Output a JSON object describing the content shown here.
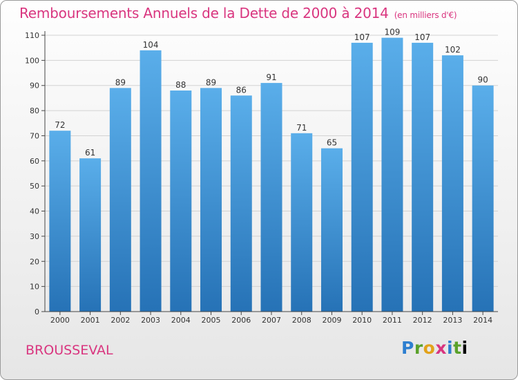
{
  "chart_data": {
    "type": "bar",
    "title": "Remboursements Annuels de la Dette de 2000 à 2014",
    "unit_label": "(en milliers d'€)",
    "categories": [
      "2000",
      "2001",
      "2002",
      "2003",
      "2004",
      "2005",
      "2006",
      "2007",
      "2008",
      "2009",
      "2010",
      "2011",
      "2012",
      "2013",
      "2014"
    ],
    "values": [
      72,
      61,
      89,
      104,
      88,
      89,
      86,
      91,
      71,
      65,
      107,
      109,
      107,
      102,
      90
    ],
    "yticks": [
      0,
      10,
      20,
      30,
      40,
      50,
      60,
      70,
      80,
      90,
      100,
      110
    ],
    "ylim": [
      0,
      110
    ],
    "xlabel": "",
    "ylabel": "",
    "grid": true
  },
  "footer": {
    "commune": "BROUSSEVAL",
    "logo": "Proxiti"
  },
  "colors": {
    "title": "#d9357f",
    "bar_top": "#5aaeea",
    "bar_bottom": "#2672b6",
    "grid": "#d2d2d2",
    "axis": "#444444"
  }
}
